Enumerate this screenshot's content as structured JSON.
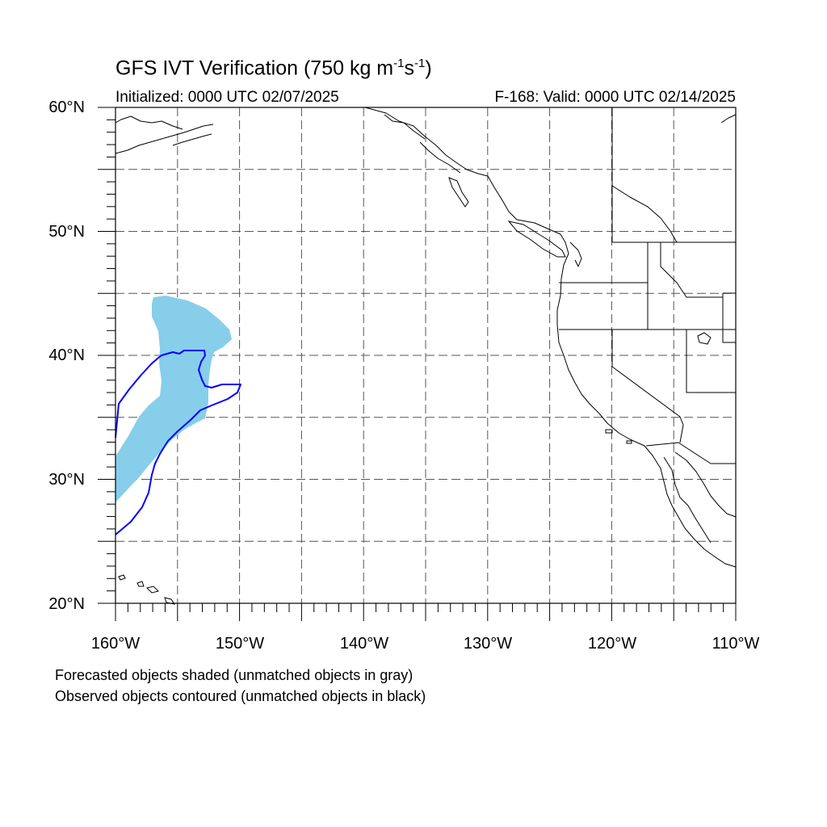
{
  "title": {
    "prefix": "GFS IVT Verification (750 kg m",
    "sup1": "-1",
    "mid": "s",
    "sup2": "-1",
    "suffix": ")"
  },
  "initialized": "Initialized: 0000 UTC 02/07/2025",
  "valid": "F-168: Valid: 0000 UTC 02/14/2025",
  "lat_labels": [
    "60°N",
    "50°N",
    "40°N",
    "30°N",
    "20°N"
  ],
  "lon_labels": [
    "160°W",
    "150°W",
    "140°W",
    "130°W",
    "120°W",
    "110°W"
  ],
  "footnotes": [
    "Forecasted objects shaded (unmatched objects in gray)",
    "Observed objects contoured (unmatched objects in black)"
  ],
  "map": {
    "lon_range": [
      -160,
      -110
    ],
    "lat_range": [
      20,
      60
    ],
    "projection": "cylindrical equidistant",
    "gridlines": "dashed every 5°",
    "forecast_color": "#87ceeb",
    "observed_color": "#0000ff",
    "coast_color": "#000000"
  }
}
